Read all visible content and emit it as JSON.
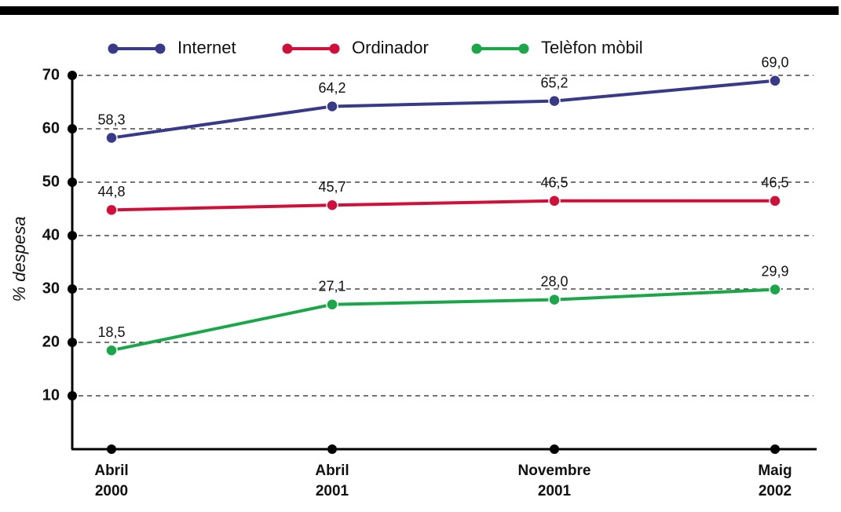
{
  "chart_data": {
    "type": "line",
    "y_label": "% despesa",
    "categories": [
      "Abril 2000",
      "Abril 2001",
      "Novembre 2001",
      "Maig 2002"
    ],
    "series": [
      {
        "name": "Internet",
        "color": "#39398a",
        "values": [
          58.3,
          64.2,
          65.2,
          69.0
        ],
        "value_labels": [
          "58,3",
          "64,2",
          "65,2",
          "69,0"
        ]
      },
      {
        "name": "Ordinador",
        "color": "#d0103a",
        "values": [
          44.8,
          45.7,
          46.5,
          46.5
        ],
        "value_labels": [
          "44,8",
          "45,7",
          "46,5",
          "46,5"
        ]
      },
      {
        "name": "Telèfon mòbil",
        "color": "#1ca64a",
        "values": [
          18.5,
          27.1,
          28.0,
          29.9
        ],
        "value_labels": [
          "18,5",
          "27,1",
          "28,0",
          "29,9"
        ]
      }
    ],
    "ylim": [
      0,
      70
    ],
    "yticks": [
      10,
      20,
      30,
      40,
      50,
      60,
      70
    ],
    "grid": true,
    "legend": "top"
  }
}
